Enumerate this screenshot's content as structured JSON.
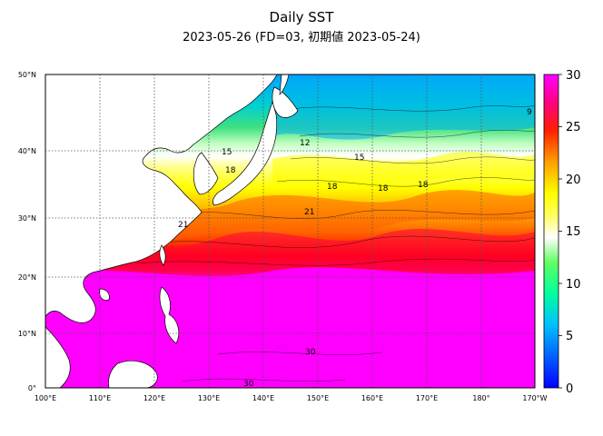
{
  "title": "Daily SST",
  "subtitle": "2023-05-26 (FD=03, 初期値 2023-05-24)",
  "map": {
    "lon_ticks": [
      "100°E",
      "110°E",
      "120°E",
      "130°E",
      "140°E",
      "150°E",
      "160°E",
      "170°E",
      "180°",
      "170°W"
    ],
    "lat_ticks": [
      "0°",
      "10°N",
      "20°N",
      "30°N",
      "40°N",
      "50°N"
    ],
    "extent": {
      "lon_min": 100,
      "lon_max": 190,
      "lat_min": 0,
      "lat_max": 50
    },
    "contour_labels": [
      "9",
      "12",
      "15",
      "15",
      "18",
      "18",
      "18",
      "18",
      "21",
      "21",
      "30",
      "30"
    ]
  },
  "colorbar": {
    "ticks": [
      "0",
      "5",
      "10",
      "15",
      "20",
      "25",
      "30"
    ],
    "min": 0,
    "max": 30,
    "colors": [
      "#0000ff",
      "#0080ff",
      "#00c0ff",
      "#00ffa0",
      "#00ff40",
      "#c0ffc0",
      "#ffffff",
      "#ffff80",
      "#ffff00",
      "#ffc000",
      "#ff8000",
      "#ff0000",
      "#ff0080",
      "#ff00ff"
    ]
  }
}
